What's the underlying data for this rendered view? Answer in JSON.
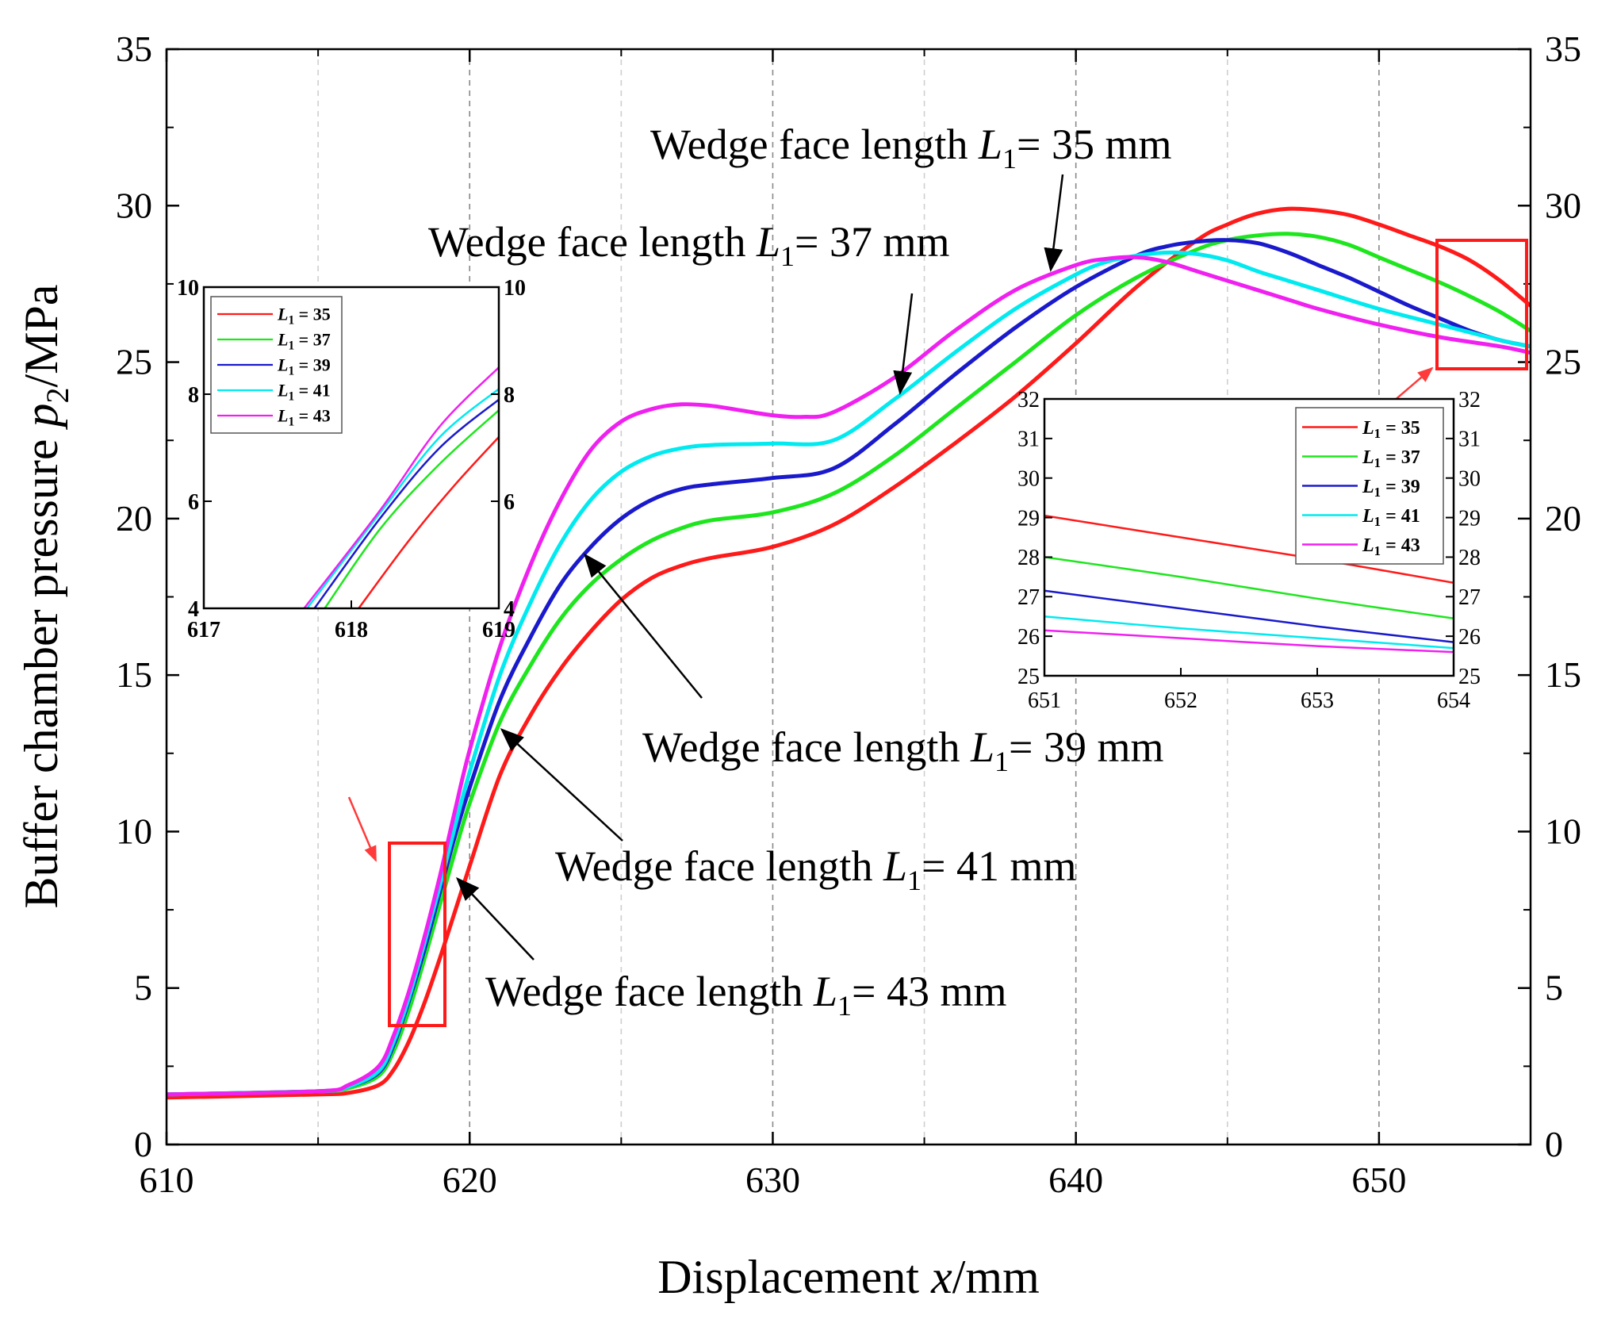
{
  "colors": {
    "L35": "#ff1a1a",
    "L37": "#1ee61e",
    "L39": "#1a1acc",
    "L41": "#00eaf0",
    "L43": "#f020f0",
    "box": "#ff1a1a",
    "arrow": "#ff3a3a",
    "grid": "#bbbbbb"
  },
  "chart_data": [
    {
      "type": "line",
      "id": "main",
      "xlabel_prefix": "Displacement ",
      "xlabel_var": "x",
      "xlabel_unit": "/mm",
      "ylabel_prefix": "Buffer chamber pressure ",
      "ylabel_var": "p",
      "ylabel_sub": "2",
      "ylabel_unit": "/MPa",
      "xlim": [
        610,
        655
      ],
      "ylim": [
        0,
        35
      ],
      "xticks": [
        610,
        620,
        630,
        640,
        650
      ],
      "yticks": [
        0,
        5,
        10,
        15,
        20,
        25,
        30,
        35
      ],
      "grid": "vertical-dashed",
      "series": [
        {
          "key": "L35",
          "x": [
            610,
            615,
            616,
            617,
            617.5,
            618,
            618.5,
            619,
            619.5,
            620,
            621,
            622,
            623,
            624,
            625,
            626,
            627,
            628,
            630,
            632,
            634,
            636,
            638,
            640,
            642,
            644,
            645,
            646,
            647,
            648,
            649,
            650,
            651,
            652,
            653,
            654,
            655
          ],
          "y": [
            1.5,
            1.6,
            1.65,
            1.9,
            2.4,
            3.3,
            4.5,
            5.9,
            7.4,
            8.9,
            11.8,
            13.7,
            15.2,
            16.4,
            17.4,
            18.1,
            18.5,
            18.75,
            19.1,
            19.8,
            21.0,
            22.4,
            23.9,
            25.6,
            27.4,
            28.9,
            29.4,
            29.75,
            29.9,
            29.85,
            29.7,
            29.4,
            29.05,
            28.7,
            28.25,
            27.6,
            26.8
          ]
        },
        {
          "key": "L37",
          "x": [
            610,
            615,
            616,
            617,
            617.5,
            618,
            618.5,
            619,
            619.5,
            620,
            621,
            622,
            623,
            624,
            625,
            626,
            627,
            628,
            630,
            632,
            634,
            636,
            638,
            640,
            642,
            644,
            645,
            646,
            647,
            648,
            649,
            650,
            651,
            652,
            653,
            654,
            655
          ],
          "y": [
            1.6,
            1.7,
            1.8,
            2.2,
            3.0,
            4.3,
            5.9,
            7.6,
            9.3,
            10.9,
            13.5,
            15.3,
            16.8,
            17.9,
            18.7,
            19.3,
            19.7,
            19.95,
            20.2,
            20.8,
            22.0,
            23.5,
            25.0,
            26.5,
            27.7,
            28.6,
            28.9,
            29.05,
            29.1,
            29.0,
            28.75,
            28.35,
            27.95,
            27.55,
            27.1,
            26.6,
            26.0
          ]
        },
        {
          "key": "L39",
          "x": [
            610,
            615,
            616,
            617,
            617.5,
            618,
            618.5,
            619,
            619.5,
            620,
            621,
            622,
            623,
            624,
            625,
            626,
            627,
            628,
            630,
            632,
            634,
            636,
            638,
            640,
            642,
            643,
            644,
            645,
            646,
            647,
            648,
            649,
            650,
            651,
            652,
            653,
            654,
            655
          ],
          "y": [
            1.6,
            1.7,
            1.85,
            2.3,
            3.2,
            4.6,
            6.2,
            8.0,
            9.8,
            11.4,
            14.2,
            16.2,
            17.9,
            19.1,
            20.0,
            20.6,
            20.95,
            21.1,
            21.3,
            21.6,
            23.0,
            24.6,
            26.1,
            27.4,
            28.4,
            28.7,
            28.85,
            28.9,
            28.8,
            28.5,
            28.1,
            27.7,
            27.25,
            26.8,
            26.4,
            26.0,
            25.7,
            25.5
          ]
        },
        {
          "key": "L41",
          "x": [
            610,
            615,
            616,
            617,
            617.5,
            618,
            618.5,
            619,
            619.5,
            620,
            621,
            622,
            623,
            624,
            625,
            626,
            627,
            628,
            630,
            632,
            634,
            636,
            638,
            640,
            641,
            642,
            643,
            644,
            645,
            646,
            647,
            648,
            650,
            652,
            654,
            655
          ],
          "y": [
            1.6,
            1.7,
            1.85,
            2.35,
            3.3,
            4.7,
            6.4,
            8.2,
            10.1,
            11.9,
            15.0,
            17.3,
            19.2,
            20.6,
            21.5,
            22.0,
            22.25,
            22.35,
            22.4,
            22.5,
            23.8,
            25.3,
            26.7,
            27.8,
            28.2,
            28.4,
            28.5,
            28.45,
            28.25,
            27.9,
            27.6,
            27.3,
            26.7,
            26.2,
            25.7,
            25.5
          ]
        },
        {
          "key": "L43",
          "x": [
            610,
            615,
            616,
            617,
            617.5,
            618,
            618.5,
            619,
            619.5,
            620,
            621,
            622,
            623,
            624,
            625,
            626,
            627,
            628,
            629,
            630,
            631,
            632,
            634,
            636,
            638,
            640,
            641,
            642,
            643,
            644,
            645,
            646,
            647,
            648,
            650,
            652,
            654,
            655
          ],
          "y": [
            1.6,
            1.7,
            1.9,
            2.5,
            3.5,
            4.9,
            6.6,
            8.5,
            10.6,
            12.6,
            15.9,
            18.5,
            20.6,
            22.2,
            23.1,
            23.5,
            23.65,
            23.6,
            23.45,
            23.3,
            23.25,
            23.4,
            24.5,
            26.0,
            27.3,
            28.1,
            28.3,
            28.35,
            28.2,
            27.9,
            27.6,
            27.3,
            27.0,
            26.7,
            26.2,
            25.8,
            25.5,
            25.3
          ]
        }
      ],
      "annotations": [
        {
          "prefix": "Wedge face length ",
          "var": "L",
          "sub": "1",
          "suffix": "= 35 mm"
        },
        {
          "prefix": "Wedge face length ",
          "var": "L",
          "sub": "1",
          "suffix": "= 37 mm"
        },
        {
          "prefix": "Wedge face length ",
          "var": "L",
          "sub": "1",
          "suffix": "= 39 mm"
        },
        {
          "prefix": "Wedge face length ",
          "var": "L",
          "sub": "1",
          "suffix": "= 41 mm"
        },
        {
          "prefix": "Wedge face length ",
          "var": "L",
          "sub": "1",
          "suffix": "= 43 mm"
        }
      ]
    },
    {
      "type": "line",
      "id": "inset-left",
      "xlim": [
        617,
        619
      ],
      "ylim": [
        4,
        10
      ],
      "xticks": [
        617,
        618,
        619
      ],
      "yticks": [
        4,
        6,
        8,
        10
      ],
      "legend": "top-left",
      "series": [
        {
          "key": "L35",
          "x": [
            618.05,
            618.4,
            618.7,
            619
          ],
          "y": [
            4.0,
            5.3,
            6.3,
            7.2
          ]
        },
        {
          "key": "L37",
          "x": [
            617.82,
            618.2,
            618.6,
            619
          ],
          "y": [
            4.0,
            5.5,
            6.7,
            7.7
          ]
        },
        {
          "key": "L39",
          "x": [
            617.75,
            618.2,
            618.6,
            619
          ],
          "y": [
            4.0,
            5.7,
            7.0,
            7.9
          ]
        },
        {
          "key": "L41",
          "x": [
            617.7,
            618.2,
            618.6,
            619
          ],
          "y": [
            4.0,
            5.8,
            7.2,
            8.1
          ]
        },
        {
          "key": "L43",
          "x": [
            617.68,
            618.2,
            618.6,
            619
          ],
          "y": [
            4.0,
            5.85,
            7.4,
            8.5
          ]
        }
      ]
    },
    {
      "type": "line",
      "id": "inset-right",
      "xlim": [
        651,
        654
      ],
      "ylim": [
        25,
        32
      ],
      "xticks": [
        651,
        652,
        653,
        654
      ],
      "yticks": [
        25,
        26,
        27,
        28,
        29,
        30,
        31,
        32
      ],
      "legend": "top-right",
      "series": [
        {
          "key": "L35",
          "x": [
            651,
            652,
            653,
            654
          ],
          "y": [
            29.05,
            28.5,
            27.95,
            27.35
          ]
        },
        {
          "key": "L37",
          "x": [
            651,
            652,
            653,
            654
          ],
          "y": [
            28.0,
            27.5,
            26.95,
            26.45
          ]
        },
        {
          "key": "L39",
          "x": [
            651,
            652,
            653,
            654
          ],
          "y": [
            27.15,
            26.7,
            26.25,
            25.85
          ]
        },
        {
          "key": "L41",
          "x": [
            651,
            652,
            653,
            654
          ],
          "y": [
            26.5,
            26.2,
            25.95,
            25.7
          ]
        },
        {
          "key": "L43",
          "x": [
            651,
            652,
            653,
            654
          ],
          "y": [
            26.15,
            25.95,
            25.75,
            25.6
          ]
        }
      ]
    }
  ],
  "legend_labels": [
    {
      "key": "L35",
      "var": "L",
      "sub": "1",
      "suffix": " = 35"
    },
    {
      "key": "L37",
      "var": "L",
      "sub": "1",
      "suffix": " = 37"
    },
    {
      "key": "L39",
      "var": "L",
      "sub": "1",
      "suffix": " = 39"
    },
    {
      "key": "L41",
      "var": "L",
      "sub": "1",
      "suffix": " = 41"
    },
    {
      "key": "L43",
      "var": "L",
      "sub": "1",
      "suffix": " = 43"
    }
  ]
}
